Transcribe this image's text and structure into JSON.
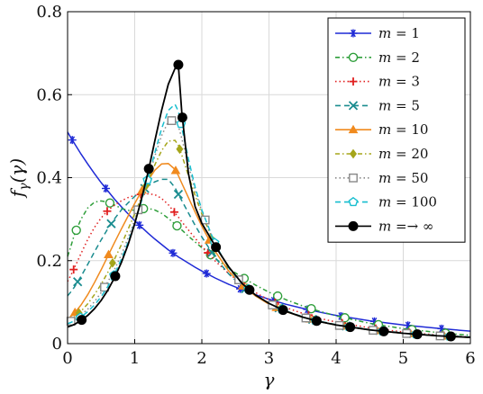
{
  "chart_data": {
    "type": "line",
    "title": "",
    "xlabel": "γ",
    "ylabel": "f_γ(γ)",
    "xlim": [
      0,
      6
    ],
    "ylim": [
      0,
      0.8
    ],
    "xticks": [
      "0",
      "1",
      "2",
      "3",
      "4",
      "5",
      "6"
    ],
    "yticks": [
      "0",
      "0.2",
      "0.4",
      "0.6",
      "0.8"
    ],
    "grid": true,
    "legend_position": "top-right",
    "x": [
      0.0,
      0.05,
      0.1,
      0.2,
      0.3,
      0.4,
      0.5,
      0.6,
      0.7,
      0.8,
      0.9,
      1.0,
      1.1,
      1.2,
      1.3,
      1.4,
      1.5,
      1.6,
      1.65,
      1.7,
      1.8,
      1.9,
      2.0,
      2.2,
      2.4,
      2.6,
      2.8,
      3.0,
      3.25,
      3.5,
      3.75,
      4.0,
      4.5,
      5.0,
      5.5,
      6.0
    ],
    "series": [
      {
        "name": "m = 1",
        "color": "#1f2ad6",
        "dash": "",
        "marker": "star",
        "values": [
          0.51,
          0.496,
          0.483,
          0.457,
          0.433,
          0.41,
          0.388,
          0.368,
          0.348,
          0.33,
          0.313,
          0.296,
          0.281,
          0.266,
          0.252,
          0.239,
          0.226,
          0.215,
          0.209,
          0.204,
          0.194,
          0.184,
          0.175,
          0.158,
          0.143,
          0.13,
          0.118,
          0.107,
          0.095,
          0.085,
          0.076,
          0.068,
          0.055,
          0.045,
          0.037,
          0.03
        ]
      },
      {
        "name": "m = 2",
        "color": "#2e9e3a",
        "dash": "5,3,1.5,3",
        "marker": "circle-open",
        "values": [
          0.21,
          0.235,
          0.262,
          0.3,
          0.327,
          0.341,
          0.344,
          0.341,
          0.334,
          0.326,
          0.321,
          0.322,
          0.325,
          0.326,
          0.322,
          0.314,
          0.302,
          0.288,
          0.281,
          0.274,
          0.259,
          0.245,
          0.231,
          0.205,
          0.181,
          0.16,
          0.141,
          0.124,
          0.106,
          0.091,
          0.078,
          0.067,
          0.049,
          0.036,
          0.027,
          0.02
        ]
      },
      {
        "name": "m = 3",
        "color": "#e01f1f",
        "dash": "1.5,3",
        "marker": "plus",
        "values": [
          0.15,
          0.165,
          0.182,
          0.217,
          0.251,
          0.28,
          0.303,
          0.321,
          0.334,
          0.344,
          0.352,
          0.357,
          0.36,
          0.361,
          0.359,
          0.35,
          0.335,
          0.315,
          0.305,
          0.294,
          0.274,
          0.254,
          0.235,
          0.199,
          0.169,
          0.144,
          0.123,
          0.105,
          0.087,
          0.073,
          0.061,
          0.052,
          0.038,
          0.028,
          0.021,
          0.016
        ]
      },
      {
        "name": "m = 5",
        "color": "#1a8c8f",
        "dash": "6,4",
        "marker": "x",
        "values": [
          0.115,
          0.125,
          0.136,
          0.162,
          0.191,
          0.221,
          0.25,
          0.277,
          0.301,
          0.322,
          0.339,
          0.355,
          0.368,
          0.38,
          0.39,
          0.396,
          0.396,
          0.376,
          0.36,
          0.345,
          0.315,
          0.285,
          0.257,
          0.207,
          0.168,
          0.138,
          0.115,
          0.097,
          0.079,
          0.065,
          0.054,
          0.046,
          0.034,
          0.026,
          0.02,
          0.016
        ]
      },
      {
        "name": "m = 10",
        "color": "#f08a1e",
        "dash": "",
        "marker": "triangle",
        "values": [
          0.06,
          0.066,
          0.073,
          0.093,
          0.118,
          0.147,
          0.178,
          0.211,
          0.244,
          0.276,
          0.307,
          0.338,
          0.367,
          0.394,
          0.418,
          0.433,
          0.434,
          0.42,
          0.405,
          0.387,
          0.352,
          0.317,
          0.283,
          0.222,
          0.175,
          0.14,
          0.115,
          0.095,
          0.077,
          0.064,
          0.053,
          0.045,
          0.033,
          0.025,
          0.019,
          0.015
        ]
      },
      {
        "name": "m = 20",
        "color": "#a5a51a",
        "dash": "5,3,1.5,3",
        "marker": "diamond",
        "values": [
          0.055,
          0.059,
          0.064,
          0.078,
          0.096,
          0.118,
          0.143,
          0.172,
          0.204,
          0.238,
          0.275,
          0.313,
          0.353,
          0.393,
          0.431,
          0.465,
          0.488,
          0.49,
          0.478,
          0.455,
          0.405,
          0.357,
          0.312,
          0.236,
          0.182,
          0.144,
          0.117,
          0.097,
          0.078,
          0.064,
          0.053,
          0.045,
          0.033,
          0.025,
          0.019,
          0.015
        ]
      },
      {
        "name": "m = 50",
        "color": "#888888",
        "dash": "1.5,3",
        "marker": "square-open",
        "values": [
          0.05,
          0.054,
          0.058,
          0.069,
          0.083,
          0.101,
          0.123,
          0.149,
          0.179,
          0.214,
          0.254,
          0.298,
          0.347,
          0.399,
          0.452,
          0.501,
          0.535,
          0.54,
          0.525,
          0.495,
          0.43,
          0.37,
          0.318,
          0.238,
          0.183,
          0.144,
          0.117,
          0.097,
          0.078,
          0.064,
          0.053,
          0.045,
          0.033,
          0.025,
          0.019,
          0.015
        ]
      },
      {
        "name": "m = 100",
        "color": "#17becf",
        "dash": "6,4",
        "marker": "pentagon-open",
        "values": [
          0.048,
          0.051,
          0.055,
          0.064,
          0.077,
          0.093,
          0.113,
          0.138,
          0.168,
          0.203,
          0.244,
          0.291,
          0.343,
          0.4,
          0.46,
          0.518,
          0.562,
          0.577,
          0.56,
          0.522,
          0.445,
          0.377,
          0.322,
          0.239,
          0.183,
          0.144,
          0.117,
          0.097,
          0.078,
          0.064,
          0.053,
          0.045,
          0.033,
          0.025,
          0.019,
          0.015
        ]
      },
      {
        "name": "m =→ ∞",
        "color": "#000000",
        "dash": "",
        "marker": "circle-filled",
        "values": [
          0.04,
          0.043,
          0.046,
          0.056,
          0.068,
          0.084,
          0.104,
          0.129,
          0.159,
          0.195,
          0.238,
          0.289,
          0.348,
          0.414,
          0.489,
          0.562,
          0.625,
          0.663,
          0.672,
          0.56,
          0.41,
          0.33,
          0.29,
          0.235,
          0.185,
          0.145,
          0.117,
          0.097,
          0.078,
          0.064,
          0.053,
          0.045,
          0.033,
          0.025,
          0.019,
          0.015
        ]
      }
    ]
  }
}
